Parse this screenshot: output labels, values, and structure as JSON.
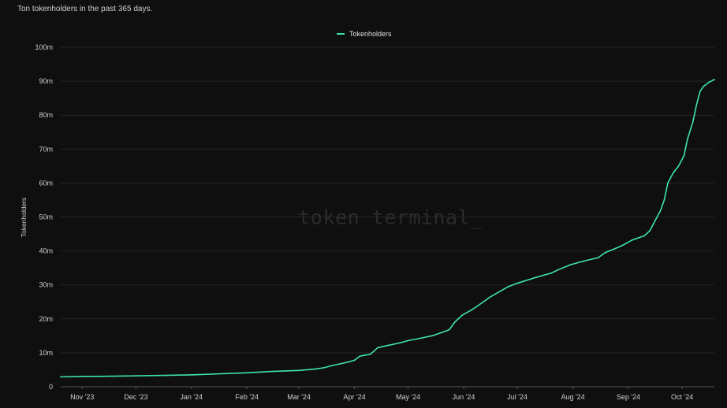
{
  "subtitle": "Ton tokenholders in the past 365 days.",
  "watermark": "token terminal_",
  "colors": {
    "background": "#0f0f0f",
    "series": "#3ee6a6",
    "grid": "#262626"
  },
  "chart_data": {
    "type": "line",
    "title": "",
    "subtitle": "Ton tokenholders in the past 365 days.",
    "xlabel": "",
    "ylabel": "Tokenholders",
    "legend_position": "top-center",
    "grid": true,
    "ylim": [
      0,
      100
    ],
    "yticks": [
      "0",
      "10m",
      "20m",
      "30m",
      "40m",
      "50m",
      "60m",
      "70m",
      "80m",
      "90m",
      "100m"
    ],
    "xlim": [
      "2023-10-20",
      "2024-10-19"
    ],
    "xticks": [
      {
        "label": "Nov '23",
        "date": "2023-11-01"
      },
      {
        "label": "Dec '23",
        "date": "2023-12-01"
      },
      {
        "label": "Jan '24",
        "date": "2024-01-01"
      },
      {
        "label": "Feb '24",
        "date": "2024-02-01"
      },
      {
        "label": "Mar '24",
        "date": "2024-03-01"
      },
      {
        "label": "Apr '24",
        "date": "2024-04-01"
      },
      {
        "label": "May '24",
        "date": "2024-05-01"
      },
      {
        "label": "Jun '24",
        "date": "2024-06-01"
      },
      {
        "label": "Jul '24",
        "date": "2024-07-01"
      },
      {
        "label": "Aug '24",
        "date": "2024-08-01"
      },
      {
        "label": "Sep '24",
        "date": "2024-09-01"
      },
      {
        "label": "Oct '24",
        "date": "2024-10-01"
      }
    ],
    "series": [
      {
        "name": "Tokenholders",
        "unit": "millions",
        "points": [
          [
            "2023-10-20",
            2.9
          ],
          [
            "2023-11-01",
            3.0
          ],
          [
            "2023-12-01",
            3.2
          ],
          [
            "2024-01-01",
            3.5
          ],
          [
            "2024-02-01",
            4.1
          ],
          [
            "2024-02-15",
            4.5
          ],
          [
            "2024-03-01",
            4.8
          ],
          [
            "2024-03-10",
            5.2
          ],
          [
            "2024-03-15",
            5.6
          ],
          [
            "2024-03-20",
            6.3
          ],
          [
            "2024-03-28",
            7.2
          ],
          [
            "2024-04-01",
            7.8
          ],
          [
            "2024-04-04",
            9.0
          ],
          [
            "2024-04-10",
            9.6
          ],
          [
            "2024-04-14",
            11.5
          ],
          [
            "2024-04-20",
            12.2
          ],
          [
            "2024-04-27",
            13.0
          ],
          [
            "2024-05-01",
            13.6
          ],
          [
            "2024-05-08",
            14.3
          ],
          [
            "2024-05-15",
            15.1
          ],
          [
            "2024-05-20",
            16.0
          ],
          [
            "2024-05-24",
            16.8
          ],
          [
            "2024-05-27",
            19.0
          ],
          [
            "2024-05-31",
            21.0
          ],
          [
            "2024-06-06",
            22.8
          ],
          [
            "2024-06-12",
            25.0
          ],
          [
            "2024-06-16",
            26.5
          ],
          [
            "2024-06-21",
            28.0
          ],
          [
            "2024-06-26",
            29.5
          ],
          [
            "2024-07-01",
            30.5
          ],
          [
            "2024-07-10",
            32.0
          ],
          [
            "2024-07-20",
            33.5
          ],
          [
            "2024-07-24",
            34.5
          ],
          [
            "2024-07-31",
            36.0
          ],
          [
            "2024-08-07",
            37.0
          ],
          [
            "2024-08-15",
            38.0
          ],
          [
            "2024-08-19",
            39.5
          ],
          [
            "2024-08-26",
            41.0
          ],
          [
            "2024-08-30",
            42.0
          ],
          [
            "2024-09-03",
            43.2
          ],
          [
            "2024-09-10",
            44.5
          ],
          [
            "2024-09-13",
            46.0
          ],
          [
            "2024-09-16",
            49.0
          ],
          [
            "2024-09-19",
            52.0
          ],
          [
            "2024-09-21",
            55.0
          ],
          [
            "2024-09-23",
            60.0
          ],
          [
            "2024-09-26",
            63.0
          ],
          [
            "2024-09-29",
            65.0
          ],
          [
            "2024-10-02",
            68.0
          ],
          [
            "2024-10-04",
            73.0
          ],
          [
            "2024-10-07",
            78.0
          ],
          [
            "2024-10-09",
            83.0
          ],
          [
            "2024-10-11",
            87.0
          ],
          [
            "2024-10-13",
            88.5
          ],
          [
            "2024-10-16",
            89.7
          ],
          [
            "2024-10-19",
            90.5
          ]
        ]
      }
    ]
  }
}
